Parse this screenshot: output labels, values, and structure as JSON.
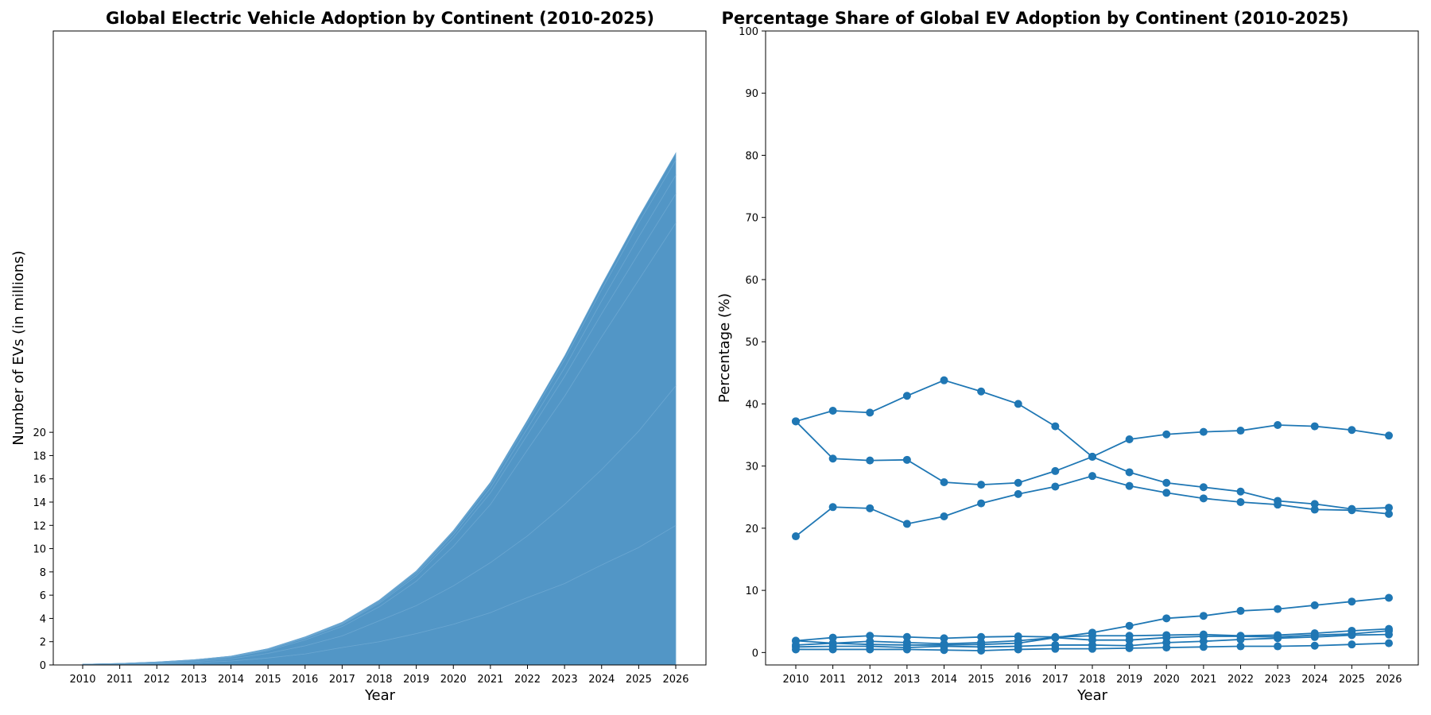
{
  "chart_data": [
    {
      "type": "area",
      "stacked": true,
      "title": "Global Electric Vehicle Adoption by Continent (2010-2025)",
      "xlabel": "Year",
      "ylabel": "Number of EVs (in millions)",
      "x": [
        "2010",
        "2011",
        "2012",
        "2013",
        "2014",
        "2015",
        "2016",
        "2017",
        "2018",
        "2019",
        "2020",
        "2021",
        "2022",
        "2023",
        "2024",
        "2025",
        "2026"
      ],
      "yticks": [
        "0",
        "2",
        "4",
        "6",
        "8",
        "10",
        "12",
        "14",
        "16",
        "18",
        "20"
      ],
      "ylim": [
        0,
        54.5
      ],
      "grid": false,
      "color": "#4c93c4",
      "series": [
        {
          "values": [
            0.02,
            0.05,
            0.1,
            0.19,
            0.34,
            0.6,
            0.95,
            1.5,
            2.0,
            2.7,
            3.5,
            4.5,
            5.8,
            7.0,
            8.6,
            10.1,
            12.0
          ]
        },
        {
          "values": [
            0.01,
            0.03,
            0.06,
            0.1,
            0.18,
            0.4,
            0.7,
            1.0,
            1.8,
            2.4,
            3.3,
            4.3,
            5.3,
            6.8,
            8.2,
            10.0,
            12.0
          ]
        },
        {
          "values": [
            0.02,
            0.03,
            0.06,
            0.1,
            0.15,
            0.25,
            0.5,
            0.8,
            1.2,
            2.1,
            3.4,
            5.0,
            7.4,
            9.3,
            11.4,
            13.0,
            14.0
          ]
        },
        {
          "values": [
            0.005,
            0.01,
            0.02,
            0.03,
            0.05,
            0.08,
            0.15,
            0.2,
            0.3,
            0.45,
            0.7,
            1.0,
            1.3,
            1.7,
            2.0,
            2.3,
            2.5
          ]
        },
        {
          "values": [
            0.002,
            0.005,
            0.01,
            0.015,
            0.02,
            0.04,
            0.06,
            0.08,
            0.12,
            0.2,
            0.3,
            0.4,
            0.55,
            0.75,
            1.1,
            1.4,
            1.6
          ]
        },
        {
          "values": [
            0.001,
            0.002,
            0.005,
            0.008,
            0.01,
            0.02,
            0.04,
            0.06,
            0.1,
            0.15,
            0.25,
            0.35,
            0.5,
            0.7,
            0.95,
            1.2,
            1.3
          ]
        },
        {
          "values": [
            0.0005,
            0.001,
            0.002,
            0.004,
            0.006,
            0.01,
            0.02,
            0.03,
            0.05,
            0.08,
            0.1,
            0.15,
            0.2,
            0.3,
            0.4,
            0.5,
            0.6
          ]
        }
      ]
    },
    {
      "type": "line",
      "title": "Percentage Share of Global EV Adoption by Continent (2010-2025)",
      "xlabel": "Year",
      "ylabel": "Percentage (%)",
      "x": [
        "2010",
        "2011",
        "2012",
        "2013",
        "2014",
        "2015",
        "2016",
        "2017",
        "2018",
        "2019",
        "2020",
        "2021",
        "2022",
        "2023",
        "2024",
        "2025",
        "2026"
      ],
      "yticks": [
        "0",
        "10",
        "20",
        "30",
        "40",
        "50",
        "60",
        "70",
        "80",
        "90",
        "100"
      ],
      "ylim": [
        -2,
        100
      ],
      "grid": false,
      "markers": true,
      "color": "#1f77b4",
      "series": [
        {
          "values": [
            37.2,
            38.9,
            38.6,
            41.3,
            43.8,
            42.0,
            40.0,
            36.4,
            31.5,
            29.0,
            27.3,
            26.6,
            25.9,
            24.4,
            23.9,
            23.1,
            23.3
          ]
        },
        {
          "values": [
            18.7,
            23.4,
            23.2,
            20.7,
            21.9,
            24.0,
            25.5,
            26.7,
            28.4,
            26.8,
            25.7,
            24.8,
            24.2,
            23.8,
            23.0,
            22.9,
            22.3
          ]
        },
        {
          "values": [
            37.2,
            31.2,
            30.9,
            31.0,
            27.4,
            27.0,
            27.3,
            29.2,
            31.5,
            34.3,
            35.1,
            35.5,
            35.7,
            36.6,
            36.4,
            35.8,
            34.9
          ]
        },
        {
          "values": [
            1.9,
            1.5,
            1.3,
            1.2,
            1.2,
            1.3,
            1.5,
            2.4,
            3.2,
            4.3,
            5.5,
            5.9,
            6.7,
            7.0,
            7.6,
            8.2,
            8.8
          ]
        },
        {
          "values": [
            1.9,
            2.4,
            2.7,
            2.5,
            2.3,
            2.5,
            2.6,
            2.5,
            2.7,
            2.7,
            2.8,
            2.9,
            2.7,
            2.8,
            3.1,
            3.5,
            3.8
          ]
        },
        {
          "values": [
            1.2,
            1.5,
            1.8,
            1.6,
            1.4,
            1.6,
            1.9,
            2.4,
            2.0,
            2.0,
            2.4,
            2.6,
            2.6,
            2.5,
            2.8,
            3.0,
            3.5
          ]
        },
        {
          "values": [
            0.9,
            1.0,
            1.0,
            0.8,
            1.0,
            0.9,
            1.0,
            1.2,
            1.2,
            1.1,
            1.6,
            1.8,
            2.1,
            2.3,
            2.5,
            2.8,
            2.9
          ]
        },
        {
          "values": [
            0.5,
            0.5,
            0.5,
            0.5,
            0.4,
            0.3,
            0.5,
            0.6,
            0.6,
            0.7,
            0.8,
            0.9,
            1.0,
            1.0,
            1.1,
            1.3,
            1.5
          ]
        }
      ]
    }
  ]
}
